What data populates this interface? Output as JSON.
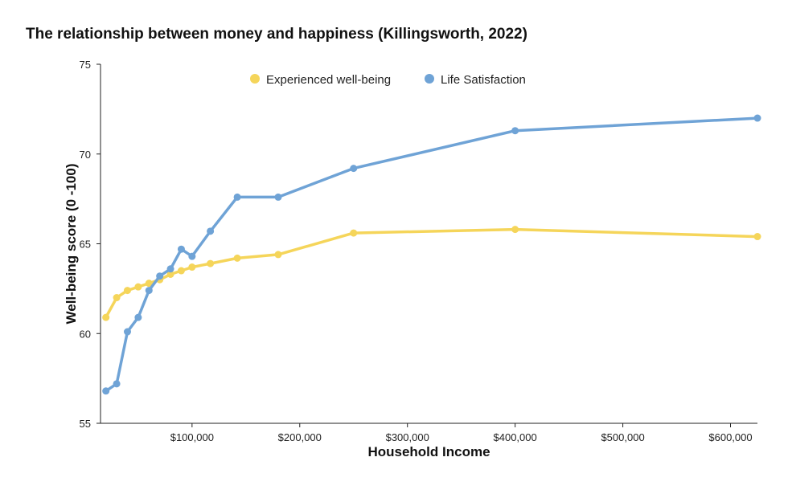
{
  "chart_data": {
    "type": "line",
    "title": "The relationship between money and happiness (Killingsworth, 2022)",
    "xlabel": "Household Income",
    "ylabel": "Well-being score (0 -100)",
    "xlim": [
      15000,
      625000
    ],
    "ylim": [
      55,
      75
    ],
    "x_ticks": [
      100000,
      200000,
      300000,
      400000,
      500000,
      600000
    ],
    "x_tick_labels": [
      "$100,000",
      "$200,000",
      "$300,000",
      "$400,000",
      "$500,000",
      "$600,000"
    ],
    "y_ticks": [
      55,
      60,
      65,
      70,
      75
    ],
    "y_tick_labels": [
      "55",
      "60",
      "65",
      "70",
      "75"
    ],
    "grid": false,
    "legend_position": "top-center",
    "series": [
      {
        "name": "Experienced well-being",
        "color": "#f5d55a",
        "points": [
          {
            "x": 20000,
            "y": 60.9
          },
          {
            "x": 30000,
            "y": 62.0
          },
          {
            "x": 40000,
            "y": 62.4
          },
          {
            "x": 50000,
            "y": 62.6
          },
          {
            "x": 60000,
            "y": 62.8
          },
          {
            "x": 70000,
            "y": 63.0
          },
          {
            "x": 80000,
            "y": 63.3
          },
          {
            "x": 90000,
            "y": 63.5
          },
          {
            "x": 100000,
            "y": 63.7
          },
          {
            "x": 117000,
            "y": 63.9
          },
          {
            "x": 142000,
            "y": 64.2
          },
          {
            "x": 180000,
            "y": 64.4
          },
          {
            "x": 250000,
            "y": 65.6
          },
          {
            "x": 400000,
            "y": 65.8
          },
          {
            "x": 625000,
            "y": 65.4
          }
        ]
      },
      {
        "name": "Life Satisfaction",
        "color": "#6fa3d6",
        "points": [
          {
            "x": 20000,
            "y": 56.8
          },
          {
            "x": 30000,
            "y": 57.2
          },
          {
            "x": 40000,
            "y": 60.1
          },
          {
            "x": 50000,
            "y": 60.9
          },
          {
            "x": 60000,
            "y": 62.4
          },
          {
            "x": 70000,
            "y": 63.2
          },
          {
            "x": 80000,
            "y": 63.6
          },
          {
            "x": 90000,
            "y": 64.7
          },
          {
            "x": 100000,
            "y": 64.3
          },
          {
            "x": 117000,
            "y": 65.7
          },
          {
            "x": 142000,
            "y": 67.6
          },
          {
            "x": 180000,
            "y": 67.6
          },
          {
            "x": 250000,
            "y": 69.2
          },
          {
            "x": 400000,
            "y": 71.3
          },
          {
            "x": 625000,
            "y": 72.0
          }
        ]
      }
    ]
  }
}
